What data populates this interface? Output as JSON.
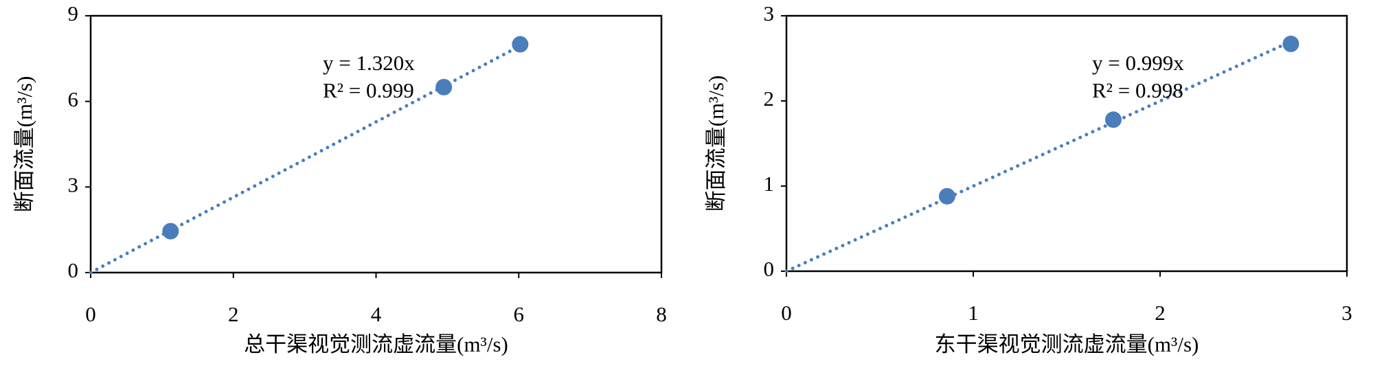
{
  "chart_data": [
    {
      "type": "scatter",
      "x_label": "总干渠视觉测流虚流量(m³/s)",
      "y_label": "断面流量(m³/s)",
      "x": [
        1.12,
        4.95,
        6.02
      ],
      "values": [
        1.45,
        6.5,
        8.0
      ],
      "color": "#4a7ebb",
      "xlim": [
        0,
        8
      ],
      "xticks": [
        0,
        2,
        4,
        6,
        8
      ],
      "ylim": [
        0,
        9
      ],
      "yticks": [
        0,
        3,
        6,
        9
      ],
      "trendline_slope": 1.32,
      "annotations": [
        "y = 1.320x",
        "R² = 0.999"
      ]
    },
    {
      "type": "scatter",
      "x_label": "东干渠视觉测流虚流量(m³/s)",
      "y_label": "断面流量(m³/s)",
      "x": [
        0.86,
        1.75,
        2.7
      ],
      "values": [
        0.88,
        1.78,
        2.67
      ],
      "color": "#4a7ebb",
      "xlim": [
        0,
        3
      ],
      "xticks": [
        0,
        1,
        2,
        3
      ],
      "ylim": [
        0,
        3
      ],
      "yticks": [
        0,
        1,
        2,
        3
      ],
      "trendline_slope": 0.999,
      "annotations": [
        "y = 0.999x",
        "R² = 0.998"
      ]
    }
  ]
}
